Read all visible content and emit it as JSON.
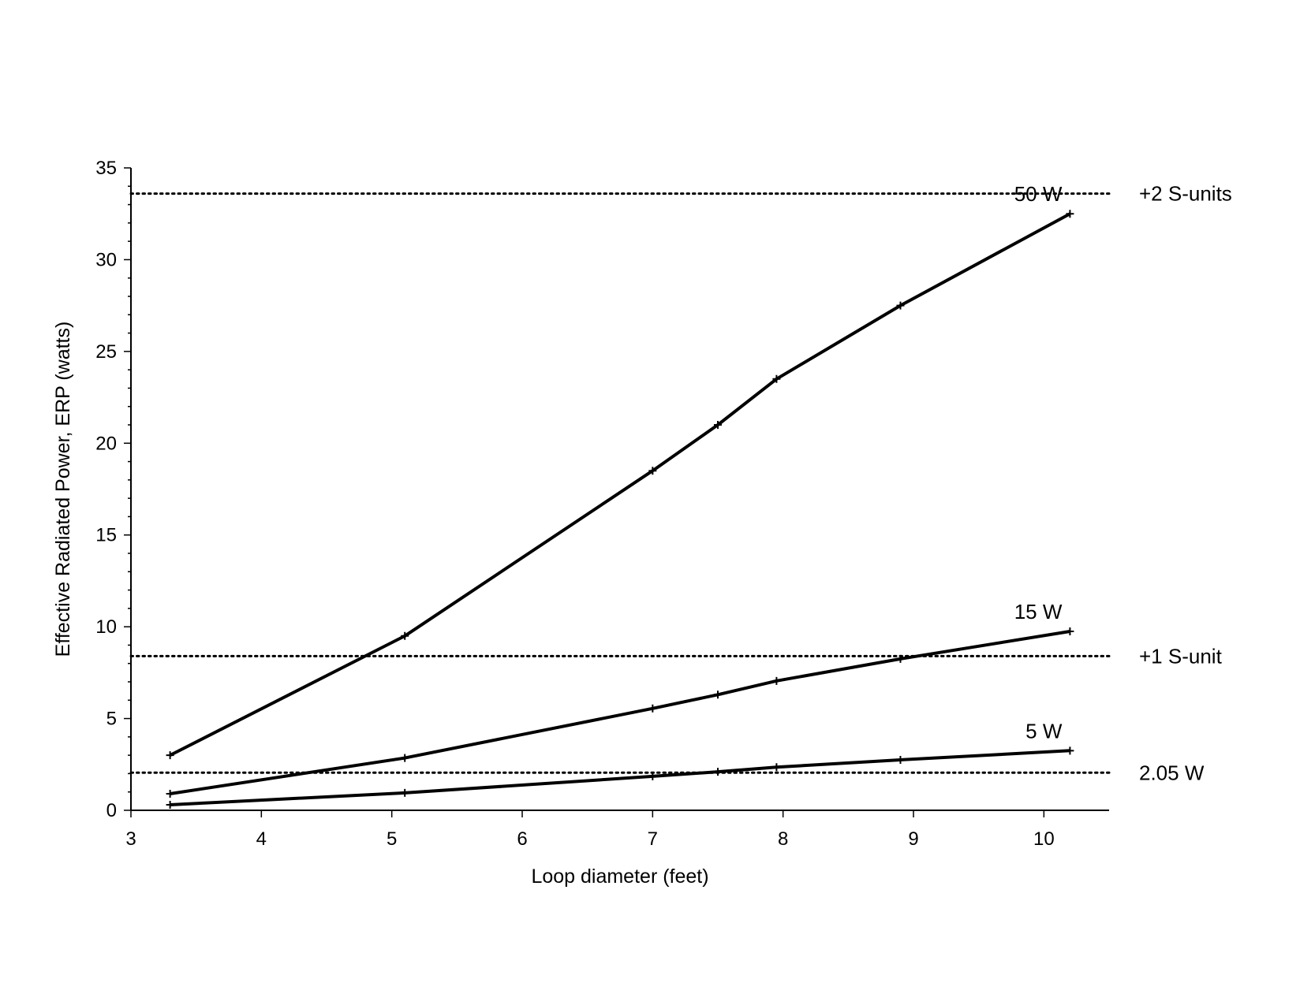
{
  "chart_data": {
    "type": "line",
    "title": "",
    "xlabel": "Loop diameter (feet)",
    "ylabel": "Effective Radiated Power, ERP (watts)",
    "xlim": [
      3,
      10.5
    ],
    "ylim": [
      0,
      35
    ],
    "x_ticks": [
      "3",
      "4",
      "5",
      "6",
      "7",
      "8",
      "9",
      "10"
    ],
    "y_ticks": [
      "0",
      "5",
      "10",
      "15",
      "20",
      "25",
      "30",
      "35"
    ],
    "grid": false,
    "legend": "none",
    "line_color": "#000000",
    "series": [
      {
        "name": "50 W",
        "points": [
          [
            3.3,
            3.0
          ],
          [
            5.1,
            9.5
          ],
          [
            7.0,
            18.5
          ],
          [
            7.5,
            21.0
          ],
          [
            7.95,
            23.5
          ],
          [
            8.9,
            27.5
          ],
          [
            10.2,
            32.5
          ]
        ]
      },
      {
        "name": "15 W",
        "points": [
          [
            3.3,
            0.9
          ],
          [
            5.1,
            2.85
          ],
          [
            7.0,
            5.55
          ],
          [
            7.5,
            6.3
          ],
          [
            7.95,
            7.05
          ],
          [
            8.9,
            8.25
          ],
          [
            10.2,
            9.75
          ]
        ]
      },
      {
        "name": "5 W",
        "points": [
          [
            3.3,
            0.3
          ],
          [
            5.1,
            0.95
          ],
          [
            7.0,
            1.85
          ],
          [
            7.5,
            2.1
          ],
          [
            7.95,
            2.35
          ],
          [
            8.9,
            2.75
          ],
          [
            10.2,
            3.25
          ]
        ]
      }
    ],
    "reference_lines": [
      {
        "label": "+2 S-units",
        "y": 33.6
      },
      {
        "label": "+1 S-unit",
        "y": 8.4
      },
      {
        "label": "2.05 W",
        "y": 2.05
      }
    ]
  }
}
